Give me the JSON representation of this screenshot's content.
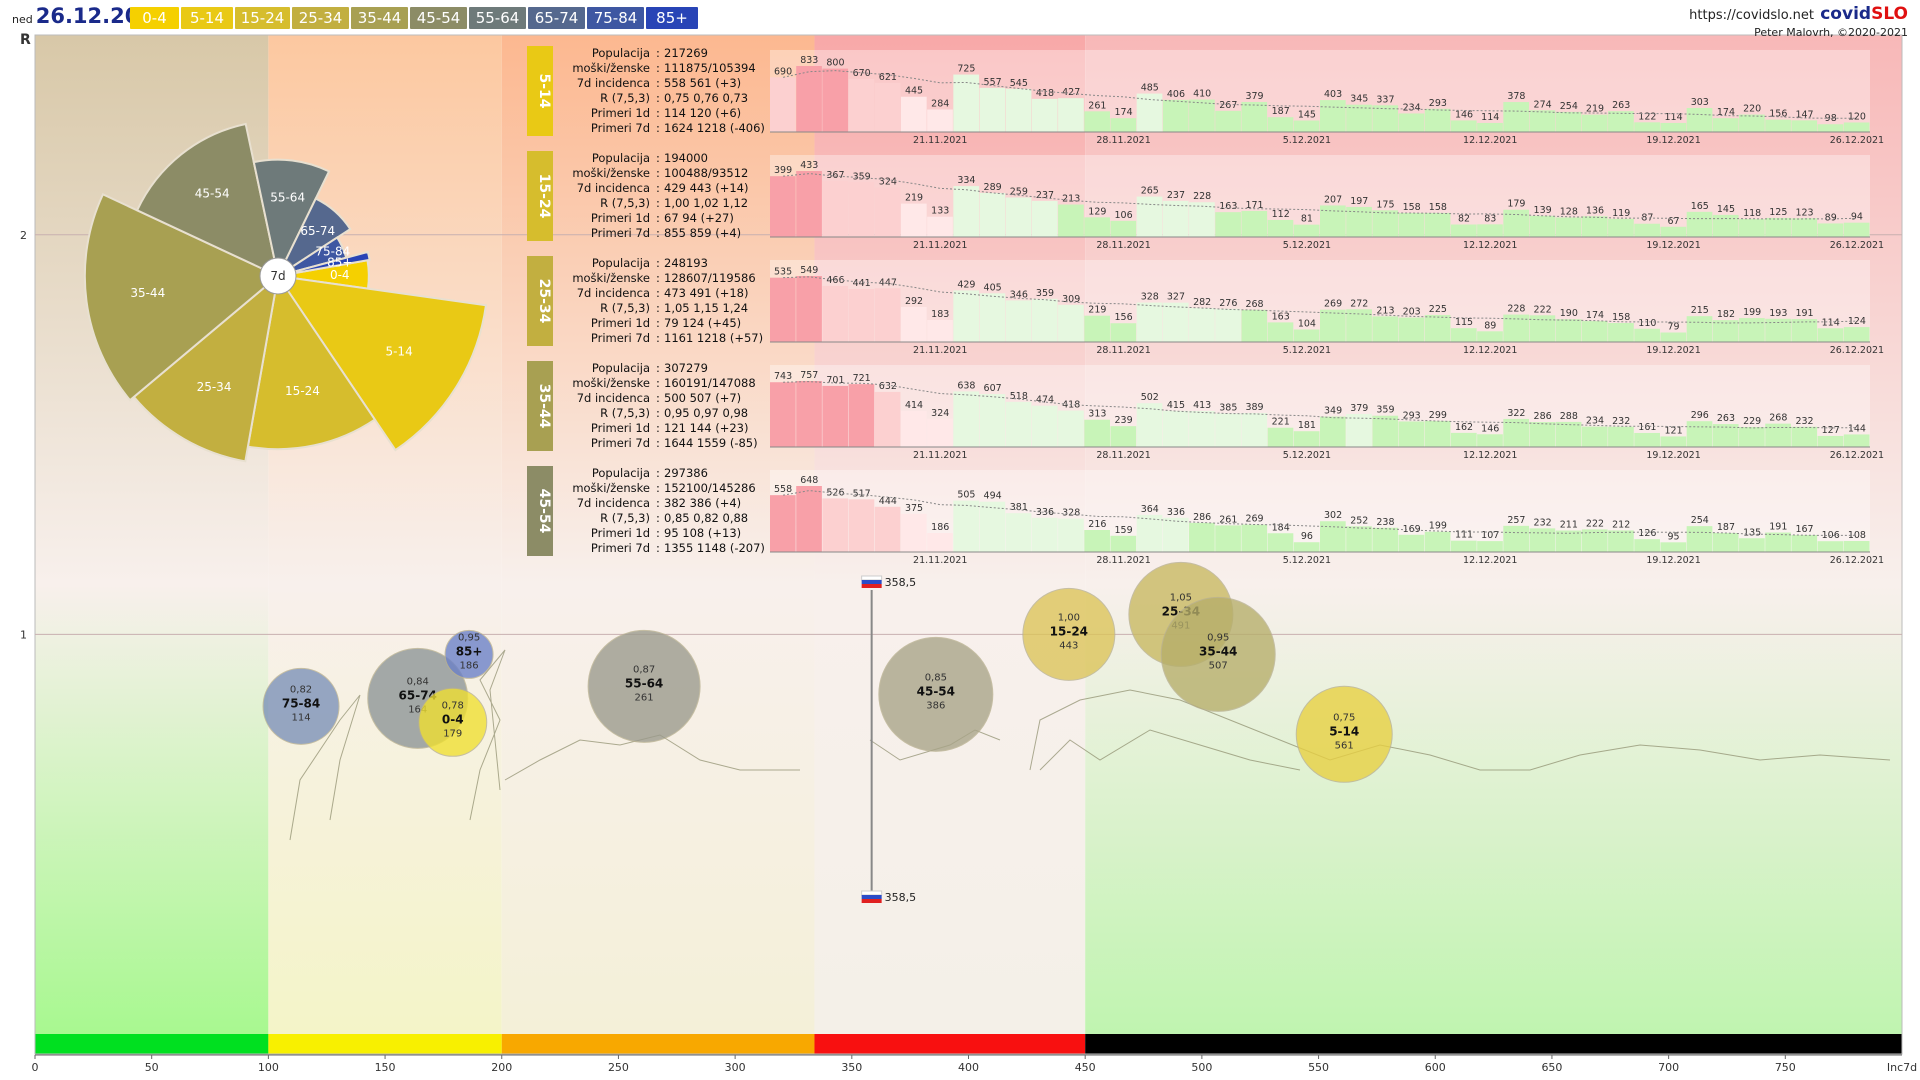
{
  "header": {
    "day": "ned",
    "date": "26.12.2021",
    "url": "https://covidslo.net",
    "brand_a": "covid",
    "brand_b": "SLO",
    "author": "Peter Malovrh, ©2020-2021",
    "legend": [
      {
        "label": "0-4",
        "color": "#f5d000"
      },
      {
        "label": "5-14",
        "color": "#e9c915"
      },
      {
        "label": "15-24",
        "color": "#d6bd2d"
      },
      {
        "label": "25-34",
        "color": "#c2af40"
      },
      {
        "label": "35-44",
        "color": "#a8a052"
      },
      {
        "label": "45-54",
        "color": "#8c8c66"
      },
      {
        "label": "55-64",
        "color": "#6e7a7a"
      },
      {
        "label": "65-74",
        "color": "#55688e"
      },
      {
        "label": "75-84",
        "color": "#3e57a2"
      },
      {
        "label": "85+",
        "color": "#2844b6"
      }
    ]
  },
  "chart_data": {
    "type": "scatter",
    "title": "",
    "xlabel": "Inc7d",
    "ylabel": "R",
    "xlim": [
      0,
      800
    ],
    "ylim": [
      0,
      2.5
    ],
    "x_ticks": [
      0,
      50,
      100,
      150,
      200,
      250,
      300,
      350,
      400,
      450,
      500,
      550,
      600,
      650,
      700,
      750
    ],
    "x_end_label": "Inc7d",
    "y_ticks": [
      1,
      2
    ],
    "zones": [
      {
        "from": 0,
        "to": 100,
        "color": "#00e020"
      },
      {
        "from": 100,
        "to": 200,
        "color": "#f8f000"
      },
      {
        "from": 200,
        "to": 334,
        "color": "#f8a800"
      },
      {
        "from": 334,
        "to": 450,
        "color": "#f81010"
      },
      {
        "from": 450,
        "to": 800,
        "color": "#000000"
      }
    ],
    "slovenia_marker": {
      "x": 358.5,
      "top_label": "358,5",
      "bottom_label": "358,5"
    },
    "bubbles": [
      {
        "label": "75-84",
        "r": "0,82",
        "inc": "114",
        "x": 114,
        "y": 0.82,
        "color": "#7a90b8"
      },
      {
        "label": "65-74",
        "r": "0,84",
        "inc": "164",
        "x": 164,
        "y": 0.84,
        "color": "#8c9496"
      },
      {
        "label": "85+",
        "r": "0,95",
        "inc": "186",
        "x": 186,
        "y": 0.95,
        "color": "#6a80c8"
      },
      {
        "label": "0-4",
        "r": "0,78",
        "inc": "179",
        "x": 179,
        "y": 0.78,
        "color": "#f0e030"
      },
      {
        "label": "55-64",
        "r": "0,87",
        "inc": "261",
        "x": 261,
        "y": 0.87,
        "color": "#9a9a8c"
      },
      {
        "label": "45-54",
        "r": "0,85",
        "inc": "386",
        "x": 386,
        "y": 0.85,
        "color": "#a8a488"
      },
      {
        "label": "15-24",
        "r": "1,00",
        "inc": "443",
        "x": 443,
        "y": 1.0,
        "color": "#dcc458"
      },
      {
        "label": "25-34",
        "r": "1,05",
        "inc": "491",
        "x": 491,
        "y": 1.05,
        "color": "#c8b860"
      },
      {
        "label": "35-44",
        "r": "0,95",
        "inc": "507",
        "x": 507,
        "y": 0.95,
        "color": "#b6ae6a"
      },
      {
        "label": "5-14",
        "r": "0,75",
        "inc": "561",
        "x": 561,
        "y": 0.75,
        "color": "#e8d040"
      }
    ],
    "rose": {
      "center_label": "7d",
      "slices": [
        {
          "label": "0-4",
          "value": 179,
          "color": "#f5d000"
        },
        {
          "label": "5-14",
          "value": 561,
          "color": "#e9c915"
        },
        {
          "label": "15-24",
          "value": 443,
          "color": "#d6bd2d"
        },
        {
          "label": "25-34",
          "value": 491,
          "color": "#c2af40"
        },
        {
          "label": "35-44",
          "value": 507,
          "color": "#a8a052"
        },
        {
          "label": "45-54",
          "value": 386,
          "color": "#8c8c66"
        },
        {
          "label": "55-64",
          "value": 261,
          "color": "#6e7a7a"
        },
        {
          "label": "65-74",
          "value": 164,
          "color": "#55688e"
        },
        {
          "label": "75-84",
          "value": 114,
          "color": "#3e57a2"
        },
        {
          "label": "85+",
          "value": 186,
          "color": "#2844b6"
        }
      ]
    },
    "panel_stat_labels": [
      "Populacija",
      "moški/ženske",
      "7d incidenca",
      "R (7,5,3)",
      "Primeri 1d",
      "Primeri 7d"
    ],
    "panel_dates": [
      "21.11.2021",
      "28.11.2021",
      "5.12.2021",
      "12.12.2021",
      "19.12.2021",
      "26.12.2021"
    ],
    "panels": [
      {
        "group": "5-14",
        "color": "#e9c915",
        "stats": [
          "217269",
          "111875/105394",
          "558 561 (+3)",
          "0,75 0,76 0,73",
          "114 120 (+6)",
          "1624 1218 (-406)"
        ],
        "values": [
          690,
          833,
          800,
          670,
          621,
          445,
          284,
          725,
          557,
          545,
          418,
          427,
          261,
          174,
          485,
          406,
          410,
          267,
          379,
          187,
          145,
          403,
          345,
          337,
          234,
          293,
          146,
          114,
          378,
          274,
          254,
          219,
          263,
          122,
          114,
          303,
          174,
          220,
          156,
          147,
          98,
          120
        ]
      },
      {
        "group": "15-24",
        "color": "#d6bd2d",
        "stats": [
          "194000",
          "100488/93512",
          "429 443 (+14)",
          "1,00 1,02 1,12",
          "67 94 (+27)",
          "855 859 (+4)"
        ],
        "values": [
          399,
          433,
          367,
          359,
          324,
          219,
          133,
          334,
          289,
          259,
          237,
          213,
          129,
          106,
          265,
          237,
          228,
          163,
          171,
          112,
          81,
          207,
          197,
          175,
          158,
          158,
          82,
          83,
          179,
          139,
          128,
          136,
          119,
          87,
          67,
          165,
          145,
          118,
          125,
          123,
          89,
          94
        ]
      },
      {
        "group": "25-34",
        "color": "#c2af40",
        "stats": [
          "248193",
          "128607/119586",
          "473 491 (+18)",
          "1,05 1,15 1,24",
          "79 124 (+45)",
          "1161 1218 (+57)"
        ],
        "values": [
          535,
          549,
          466,
          441,
          447,
          292,
          183,
          429,
          405,
          346,
          359,
          309,
          219,
          156,
          328,
          327,
          282,
          276,
          268,
          163,
          104,
          269,
          272,
          213,
          203,
          225,
          115,
          89,
          228,
          222,
          190,
          174,
          158,
          110,
          79,
          215,
          182,
          199,
          193,
          191,
          114,
          124
        ]
      },
      {
        "group": "35-44",
        "color": "#a8a052",
        "stats": [
          "307279",
          "160191/147088",
          "500 507 (+7)",
          "0,95 0,97 0,98",
          "121 144 (+23)",
          "1644 1559 (-85)"
        ],
        "values": [
          743,
          757,
          701,
          721,
          632,
          414,
          324,
          638,
          607,
          518,
          474,
          418,
          313,
          239,
          502,
          415,
          413,
          385,
          389,
          221,
          181,
          349,
          379,
          359,
          293,
          299,
          162,
          146,
          322,
          286,
          288,
          234,
          232,
          161,
          121,
          296,
          263,
          229,
          268,
          232,
          127,
          144
        ]
      },
      {
        "group": "45-54",
        "color": "#8c8c66",
        "stats": [
          "297386",
          "152100/145286",
          "382 386 (+4)",
          "0,85 0,82 0,88",
          "95 108 (+13)",
          "1355 1148 (-207)"
        ],
        "values": [
          558,
          648,
          526,
          517,
          444,
          375,
          186,
          505,
          494,
          381,
          336,
          328,
          216,
          159,
          364,
          336,
          286,
          261,
          269,
          184,
          96,
          302,
          252,
          238,
          169,
          199,
          111,
          107,
          257,
          232,
          211,
          222,
          212,
          126,
          95,
          254,
          187,
          135,
          191,
          167,
          106,
          108
        ]
      }
    ]
  }
}
